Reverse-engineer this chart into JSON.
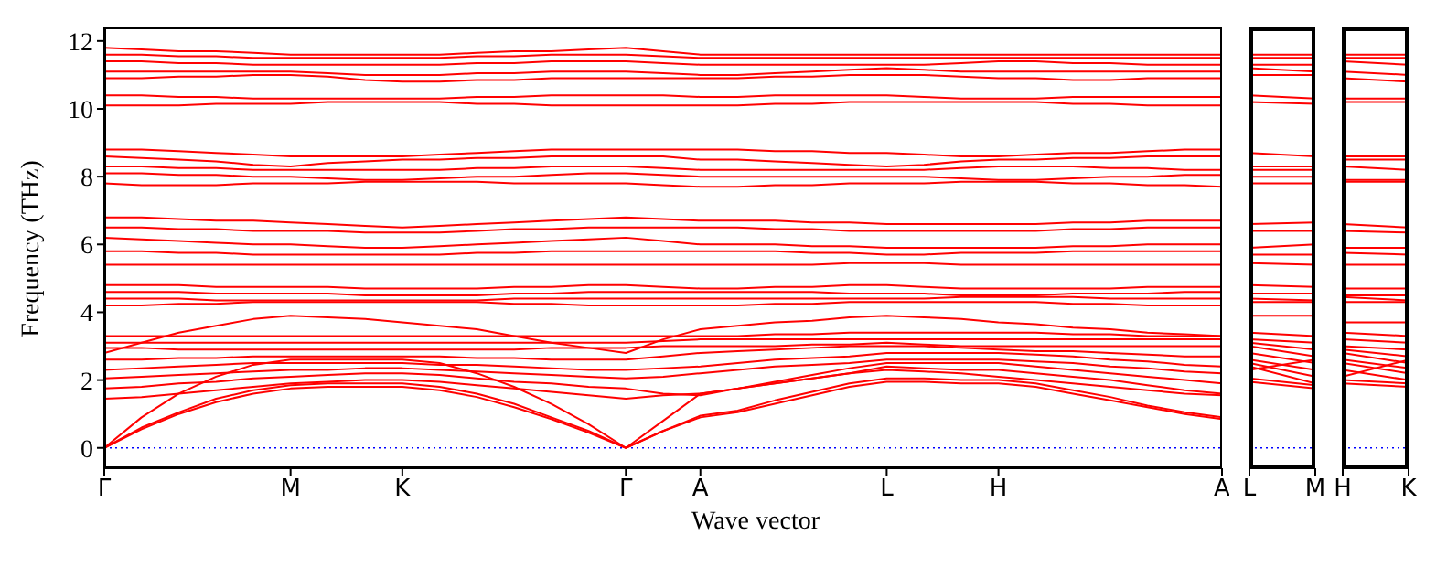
{
  "chart_data": [
    {
      "type": "line",
      "ylabel": "Frequency (THz)",
      "xlabel": "Wave vector",
      "categories": [
        "Γ",
        null,
        null,
        null,
        null,
        "M",
        null,
        null,
        "K",
        null,
        null,
        null,
        null,
        null,
        "Γ",
        null,
        "A",
        null,
        null,
        null,
        null,
        "L",
        null,
        null,
        "H",
        null,
        null,
        null,
        null,
        null,
        "A"
      ],
      "ylim": [
        -0.6,
        12.4
      ],
      "yticks": [
        0,
        2,
        4,
        6,
        8,
        10,
        12
      ],
      "ref_lines": [
        {
          "axis": "y",
          "value": 0,
          "color": "#0000ff",
          "line_style": "dotted"
        }
      ],
      "series": [
        {
          "color": "#ff0000",
          "values": [
            0,
            0.55,
            1.0,
            1.35,
            1.6,
            1.75,
            1.8,
            1.8,
            1.8,
            1.7,
            1.5,
            1.2,
            0.85,
            0.45,
            0,
            0.5,
            0.9,
            1.05,
            1.3,
            1.55,
            1.8,
            1.95,
            1.95,
            1.9,
            1.9,
            1.8,
            1.6,
            1.4,
            1.2,
            1.0,
            0.85
          ]
        },
        {
          "color": "#ff0000",
          "values": [
            0,
            0.6,
            1.05,
            1.45,
            1.7,
            1.85,
            1.9,
            1.9,
            1.9,
            1.8,
            1.6,
            1.3,
            0.9,
            0.5,
            0,
            0.5,
            0.95,
            1.1,
            1.4,
            1.65,
            1.9,
            2.05,
            2.05,
            2.0,
            2.0,
            1.9,
            1.7,
            1.5,
            1.25,
            1.05,
            0.9
          ]
        },
        {
          "color": "#ff0000",
          "values": [
            0,
            0.9,
            1.6,
            2.1,
            2.45,
            2.6,
            2.6,
            2.6,
            2.6,
            2.5,
            2.2,
            1.8,
            1.3,
            0.7,
            0,
            0.8,
            1.6,
            1.75,
            1.9,
            2.05,
            2.2,
            2.3,
            2.25,
            2.2,
            2.1,
            2.0,
            1.9,
            1.8,
            1.7,
            1.6,
            1.55
          ]
        },
        {
          "color": "#ff0000",
          "values": [
            1.45,
            1.5,
            1.6,
            1.7,
            1.8,
            1.9,
            1.95,
            2.0,
            2.0,
            1.95,
            1.85,
            1.75,
            1.65,
            1.55,
            1.45,
            1.55,
            1.6,
            1.75,
            1.9,
            2.05,
            2.2,
            2.4,
            2.35,
            2.3,
            2.3,
            2.2,
            2.1,
            2.0,
            1.85,
            1.7,
            1.6
          ]
        },
        {
          "color": "#ff0000",
          "values": [
            1.75,
            1.8,
            1.9,
            1.95,
            2.05,
            2.1,
            2.15,
            2.2,
            2.2,
            2.15,
            2.05,
            1.95,
            1.9,
            1.8,
            1.75,
            1.6,
            1.55,
            1.75,
            1.95,
            2.15,
            2.35,
            2.5,
            2.5,
            2.5,
            2.5,
            2.4,
            2.3,
            2.2,
            2.1,
            2.0,
            1.9
          ]
        },
        {
          "color": "#ff0000",
          "values": [
            2.05,
            2.1,
            2.15,
            2.2,
            2.25,
            2.3,
            2.3,
            2.35,
            2.35,
            2.3,
            2.25,
            2.2,
            2.15,
            2.1,
            2.05,
            2.1,
            2.2,
            2.3,
            2.4,
            2.45,
            2.5,
            2.6,
            2.6,
            2.6,
            2.6,
            2.55,
            2.5,
            2.4,
            2.35,
            2.25,
            2.2
          ]
        },
        {
          "color": "#ff0000",
          "values": [
            2.3,
            2.35,
            2.4,
            2.45,
            2.5,
            2.5,
            2.5,
            2.5,
            2.5,
            2.45,
            2.45,
            2.4,
            2.35,
            2.3,
            2.3,
            2.35,
            2.4,
            2.5,
            2.6,
            2.65,
            2.7,
            2.8,
            2.8,
            2.8,
            2.8,
            2.75,
            2.7,
            2.6,
            2.55,
            2.45,
            2.4
          ]
        },
        {
          "color": "#ff0000",
          "values": [
            2.6,
            2.6,
            2.65,
            2.65,
            2.7,
            2.7,
            2.7,
            2.7,
            2.7,
            2.7,
            2.65,
            2.65,
            2.6,
            2.6,
            2.6,
            2.7,
            2.8,
            2.85,
            2.9,
            2.95,
            3.0,
            3.0,
            3.0,
            2.95,
            2.9,
            2.85,
            2.85,
            2.8,
            2.75,
            2.7,
            2.7
          ]
        },
        {
          "color": "#ff0000",
          "values": [
            2.95,
            2.95,
            2.9,
            2.9,
            2.9,
            2.9,
            2.9,
            2.9,
            2.9,
            2.9,
            2.9,
            2.9,
            2.95,
            2.95,
            2.95,
            3.0,
            3.0,
            3.0,
            3.0,
            3.05,
            3.05,
            3.1,
            3.05,
            3.0,
            3.0,
            3.0,
            3.0,
            3.0,
            3.0,
            3.0,
            3.0
          ]
        },
        {
          "color": "#ff0000",
          "values": [
            3.1,
            3.1,
            3.1,
            3.1,
            3.1,
            3.1,
            3.1,
            3.1,
            3.1,
            3.1,
            3.1,
            3.1,
            3.1,
            3.1,
            3.1,
            3.15,
            3.2,
            3.2,
            3.2,
            3.2,
            3.2,
            3.2,
            3.2,
            3.2,
            3.2,
            3.2,
            3.2,
            3.2,
            3.2,
            3.2,
            3.2
          ]
        },
        {
          "color": "#ff0000",
          "values": [
            3.3,
            3.3,
            3.3,
            3.3,
            3.3,
            3.3,
            3.3,
            3.3,
            3.3,
            3.3,
            3.3,
            3.3,
            3.3,
            3.3,
            3.3,
            3.3,
            3.3,
            3.3,
            3.35,
            3.35,
            3.4,
            3.4,
            3.4,
            3.4,
            3.4,
            3.4,
            3.35,
            3.35,
            3.3,
            3.3,
            3.3
          ]
        },
        {
          "color": "#ff0000",
          "values": [
            2.8,
            3.1,
            3.4,
            3.6,
            3.8,
            3.9,
            3.85,
            3.8,
            3.7,
            3.6,
            3.5,
            3.3,
            3.1,
            2.95,
            2.8,
            3.2,
            3.5,
            3.6,
            3.7,
            3.75,
            3.85,
            3.9,
            3.85,
            3.8,
            3.7,
            3.65,
            3.55,
            3.5,
            3.4,
            3.35,
            3.3
          ]
        },
        {
          "color": "#ff0000",
          "values": [
            4.2,
            4.2,
            4.25,
            4.25,
            4.3,
            4.3,
            4.3,
            4.3,
            4.3,
            4.3,
            4.3,
            4.25,
            4.25,
            4.2,
            4.2,
            4.2,
            4.2,
            4.2,
            4.25,
            4.25,
            4.3,
            4.3,
            4.3,
            4.3,
            4.3,
            4.3,
            4.25,
            4.25,
            4.2,
            4.2,
            4.2
          ]
        },
        {
          "color": "#ff0000",
          "values": [
            4.4,
            4.4,
            4.4,
            4.35,
            4.35,
            4.35,
            4.35,
            4.35,
            4.35,
            4.35,
            4.35,
            4.4,
            4.4,
            4.4,
            4.4,
            4.4,
            4.4,
            4.4,
            4.4,
            4.4,
            4.4,
            4.4,
            4.4,
            4.45,
            4.45,
            4.45,
            4.45,
            4.4,
            4.4,
            4.4,
            4.4
          ]
        },
        {
          "color": "#ff0000",
          "values": [
            4.6,
            4.6,
            4.6,
            4.55,
            4.55,
            4.55,
            4.55,
            4.5,
            4.5,
            4.5,
            4.5,
            4.55,
            4.55,
            4.6,
            4.6,
            4.6,
            4.6,
            4.6,
            4.6,
            4.6,
            4.55,
            4.55,
            4.55,
            4.5,
            4.5,
            4.5,
            4.55,
            4.55,
            4.55,
            4.6,
            4.6
          ]
        },
        {
          "color": "#ff0000",
          "values": [
            4.8,
            4.8,
            4.8,
            4.75,
            4.75,
            4.75,
            4.75,
            4.7,
            4.7,
            4.7,
            4.7,
            4.75,
            4.75,
            4.8,
            4.8,
            4.75,
            4.7,
            4.7,
            4.75,
            4.75,
            4.8,
            4.8,
            4.75,
            4.7,
            4.7,
            4.7,
            4.7,
            4.7,
            4.75,
            4.75,
            4.75
          ]
        },
        {
          "color": "#ff0000",
          "values": [
            5.4,
            5.4,
            5.4,
            5.4,
            5.4,
            5.4,
            5.4,
            5.4,
            5.4,
            5.4,
            5.4,
            5.4,
            5.4,
            5.4,
            5.4,
            5.4,
            5.4,
            5.4,
            5.4,
            5.4,
            5.45,
            5.45,
            5.45,
            5.4,
            5.4,
            5.4,
            5.4,
            5.4,
            5.4,
            5.4,
            5.4
          ]
        },
        {
          "color": "#ff0000",
          "values": [
            5.8,
            5.8,
            5.75,
            5.75,
            5.7,
            5.7,
            5.7,
            5.7,
            5.7,
            5.7,
            5.75,
            5.75,
            5.8,
            5.8,
            5.8,
            5.8,
            5.8,
            5.8,
            5.8,
            5.75,
            5.75,
            5.7,
            5.7,
            5.75,
            5.75,
            5.75,
            5.8,
            5.8,
            5.8,
            5.8,
            5.8
          ]
        },
        {
          "color": "#ff0000",
          "values": [
            6.2,
            6.15,
            6.1,
            6.05,
            6.0,
            6.0,
            5.95,
            5.9,
            5.9,
            5.95,
            6.0,
            6.05,
            6.1,
            6.15,
            6.2,
            6.1,
            6.0,
            6.0,
            6.0,
            5.95,
            5.95,
            5.9,
            5.9,
            5.9,
            5.9,
            5.9,
            5.95,
            5.95,
            6.0,
            6.0,
            6.0
          ]
        },
        {
          "color": "#ff0000",
          "values": [
            6.5,
            6.5,
            6.45,
            6.45,
            6.4,
            6.4,
            6.4,
            6.35,
            6.35,
            6.35,
            6.4,
            6.45,
            6.45,
            6.5,
            6.5,
            6.5,
            6.5,
            6.5,
            6.45,
            6.45,
            6.4,
            6.4,
            6.4,
            6.4,
            6.4,
            6.4,
            6.45,
            6.45,
            6.5,
            6.5,
            6.5
          ]
        },
        {
          "color": "#ff0000",
          "values": [
            6.8,
            6.8,
            6.75,
            6.7,
            6.7,
            6.65,
            6.6,
            6.55,
            6.5,
            6.55,
            6.6,
            6.65,
            6.7,
            6.75,
            6.8,
            6.75,
            6.7,
            6.7,
            6.7,
            6.65,
            6.65,
            6.6,
            6.6,
            6.6,
            6.6,
            6.6,
            6.65,
            6.65,
            6.7,
            6.7,
            6.7
          ]
        },
        {
          "color": "#ff0000",
          "values": [
            7.8,
            7.75,
            7.75,
            7.75,
            7.8,
            7.8,
            7.8,
            7.85,
            7.85,
            7.85,
            7.85,
            7.8,
            7.8,
            7.8,
            7.8,
            7.75,
            7.7,
            7.7,
            7.75,
            7.75,
            7.8,
            7.8,
            7.8,
            7.85,
            7.85,
            7.85,
            7.8,
            7.8,
            7.75,
            7.75,
            7.7
          ]
        },
        {
          "color": "#ff0000",
          "values": [
            8.1,
            8.1,
            8.05,
            8.05,
            8.0,
            8.0,
            7.95,
            7.9,
            7.9,
            7.95,
            8.0,
            8.0,
            8.05,
            8.1,
            8.1,
            8.05,
            8.0,
            8.0,
            8.0,
            8.0,
            8.0,
            8.0,
            8.0,
            7.95,
            7.9,
            7.9,
            7.95,
            8.0,
            8.0,
            8.05,
            8.05
          ]
        },
        {
          "color": "#ff0000",
          "values": [
            8.3,
            8.3,
            8.25,
            8.25,
            8.2,
            8.2,
            8.2,
            8.2,
            8.2,
            8.2,
            8.25,
            8.25,
            8.3,
            8.3,
            8.3,
            8.25,
            8.2,
            8.2,
            8.2,
            8.2,
            8.2,
            8.2,
            8.2,
            8.25,
            8.3,
            8.3,
            8.3,
            8.25,
            8.25,
            8.2,
            8.2
          ]
        },
        {
          "color": "#ff0000",
          "values": [
            8.6,
            8.55,
            8.5,
            8.45,
            8.35,
            8.3,
            8.4,
            8.45,
            8.5,
            8.5,
            8.55,
            8.55,
            8.6,
            8.6,
            8.6,
            8.6,
            8.5,
            8.5,
            8.45,
            8.4,
            8.35,
            8.3,
            8.35,
            8.45,
            8.5,
            8.5,
            8.55,
            8.55,
            8.6,
            8.6,
            8.6
          ]
        },
        {
          "color": "#ff0000",
          "values": [
            8.8,
            8.8,
            8.75,
            8.7,
            8.65,
            8.6,
            8.6,
            8.6,
            8.6,
            8.65,
            8.7,
            8.75,
            8.8,
            8.8,
            8.8,
            8.8,
            8.8,
            8.8,
            8.75,
            8.75,
            8.7,
            8.7,
            8.65,
            8.6,
            8.6,
            8.65,
            8.7,
            8.7,
            8.75,
            8.8,
            8.8
          ]
        },
        {
          "color": "#ff0000",
          "values": [
            10.1,
            10.1,
            10.1,
            10.15,
            10.15,
            10.15,
            10.2,
            10.2,
            10.2,
            10.2,
            10.15,
            10.15,
            10.1,
            10.1,
            10.1,
            10.1,
            10.1,
            10.1,
            10.15,
            10.15,
            10.2,
            10.2,
            10.2,
            10.2,
            10.2,
            10.2,
            10.15,
            10.15,
            10.1,
            10.1,
            10.1
          ]
        },
        {
          "color": "#ff0000",
          "values": [
            10.4,
            10.4,
            10.35,
            10.35,
            10.3,
            10.3,
            10.3,
            10.3,
            10.3,
            10.3,
            10.35,
            10.35,
            10.4,
            10.4,
            10.4,
            10.4,
            10.35,
            10.35,
            10.4,
            10.4,
            10.4,
            10.4,
            10.35,
            10.3,
            10.3,
            10.3,
            10.35,
            10.35,
            10.35,
            10.35,
            10.35
          ]
        },
        {
          "color": "#ff0000",
          "values": [
            10.9,
            10.9,
            10.95,
            10.95,
            11.0,
            11.0,
            10.95,
            10.85,
            10.8,
            10.8,
            10.85,
            10.85,
            10.9,
            10.9,
            10.9,
            10.9,
            10.9,
            10.9,
            10.95,
            10.95,
            11.0,
            11.0,
            11.0,
            10.95,
            10.9,
            10.9,
            10.85,
            10.85,
            10.9,
            10.9,
            10.9
          ]
        },
        {
          "color": "#ff0000",
          "values": [
            11.1,
            11.1,
            11.1,
            11.1,
            11.1,
            11.1,
            11.05,
            11.0,
            11.0,
            11.0,
            11.05,
            11.05,
            11.1,
            11.1,
            11.1,
            11.05,
            11.0,
            11.0,
            11.05,
            11.1,
            11.15,
            11.2,
            11.15,
            11.1,
            11.1,
            11.1,
            11.1,
            11.1,
            11.1,
            11.1,
            11.1
          ]
        },
        {
          "color": "#ff0000",
          "values": [
            11.4,
            11.4,
            11.35,
            11.35,
            11.3,
            11.3,
            11.3,
            11.3,
            11.3,
            11.3,
            11.35,
            11.35,
            11.4,
            11.4,
            11.4,
            11.35,
            11.3,
            11.3,
            11.3,
            11.3,
            11.3,
            11.3,
            11.3,
            11.35,
            11.4,
            11.4,
            11.35,
            11.35,
            11.3,
            11.3,
            11.3
          ]
        },
        {
          "color": "#ff0000",
          "values": [
            11.6,
            11.6,
            11.55,
            11.55,
            11.5,
            11.5,
            11.5,
            11.5,
            11.5,
            11.5,
            11.55,
            11.55,
            11.6,
            11.6,
            11.6,
            11.55,
            11.5,
            11.5,
            11.5,
            11.5,
            11.5,
            11.5,
            11.5,
            11.5,
            11.5,
            11.5,
            11.5,
            11.5,
            11.5,
            11.5,
            11.5
          ]
        },
        {
          "color": "#ff0000",
          "values": [
            11.8,
            11.75,
            11.7,
            11.7,
            11.65,
            11.6,
            11.6,
            11.6,
            11.6,
            11.6,
            11.65,
            11.7,
            11.7,
            11.75,
            11.8,
            11.7,
            11.6,
            11.6,
            11.6,
            11.6,
            11.6,
            11.6,
            11.6,
            11.6,
            11.6,
            11.6,
            11.6,
            11.6,
            11.6,
            11.6,
            11.6
          ]
        }
      ]
    },
    {
      "type": "line",
      "categories": [
        "L",
        "M"
      ],
      "ylim": [
        -0.6,
        12.4
      ],
      "yticks": [
        0,
        2,
        4,
        6,
        8,
        10,
        12
      ],
      "tick_labels": "x",
      "ref_lines": [
        {
          "axis": "y",
          "value": 0,
          "color": "#0000ff",
          "line_style": "dotted"
        }
      ],
      "series": [
        {
          "color": "#ff0000",
          "values": [
            1.95,
            1.75
          ]
        },
        {
          "color": "#ff0000",
          "values": [
            2.05,
            1.85
          ]
        },
        {
          "color": "#ff0000",
          "values": [
            2.3,
            2.6
          ]
        },
        {
          "color": "#ff0000",
          "values": [
            2.4,
            1.9
          ]
        },
        {
          "color": "#ff0000",
          "values": [
            2.5,
            2.1
          ]
        },
        {
          "color": "#ff0000",
          "values": [
            2.6,
            2.3
          ]
        },
        {
          "color": "#ff0000",
          "values": [
            2.8,
            2.5
          ]
        },
        {
          "color": "#ff0000",
          "values": [
            3.0,
            2.7
          ]
        },
        {
          "color": "#ff0000",
          "values": [
            3.1,
            2.9
          ]
        },
        {
          "color": "#ff0000",
          "values": [
            3.2,
            3.1
          ]
        },
        {
          "color": "#ff0000",
          "values": [
            3.4,
            3.3
          ]
        },
        {
          "color": "#ff0000",
          "values": [
            3.9,
            3.9
          ]
        },
        {
          "color": "#ff0000",
          "values": [
            4.3,
            4.3
          ]
        },
        {
          "color": "#ff0000",
          "values": [
            4.4,
            4.35
          ]
        },
        {
          "color": "#ff0000",
          "values": [
            4.55,
            4.55
          ]
        },
        {
          "color": "#ff0000",
          "values": [
            4.8,
            4.75
          ]
        },
        {
          "color": "#ff0000",
          "values": [
            5.45,
            5.4
          ]
        },
        {
          "color": "#ff0000",
          "values": [
            5.7,
            5.7
          ]
        },
        {
          "color": "#ff0000",
          "values": [
            5.9,
            6.0
          ]
        },
        {
          "color": "#ff0000",
          "values": [
            6.4,
            6.4
          ]
        },
        {
          "color": "#ff0000",
          "values": [
            6.6,
            6.65
          ]
        },
        {
          "color": "#ff0000",
          "values": [
            7.8,
            7.8
          ]
        },
        {
          "color": "#ff0000",
          "values": [
            8.0,
            8.0
          ]
        },
        {
          "color": "#ff0000",
          "values": [
            8.2,
            8.2
          ]
        },
        {
          "color": "#ff0000",
          "values": [
            8.3,
            8.3
          ]
        },
        {
          "color": "#ff0000",
          "values": [
            8.7,
            8.6
          ]
        },
        {
          "color": "#ff0000",
          "values": [
            10.2,
            10.15
          ]
        },
        {
          "color": "#ff0000",
          "values": [
            10.4,
            10.3
          ]
        },
        {
          "color": "#ff0000",
          "values": [
            11.0,
            11.0
          ]
        },
        {
          "color": "#ff0000",
          "values": [
            11.2,
            11.1
          ]
        },
        {
          "color": "#ff0000",
          "values": [
            11.3,
            11.3
          ]
        },
        {
          "color": "#ff0000",
          "values": [
            11.5,
            11.5
          ]
        },
        {
          "color": "#ff0000",
          "values": [
            11.6,
            11.6
          ]
        }
      ]
    },
    {
      "type": "line",
      "categories": [
        "H",
        "K"
      ],
      "ylim": [
        -0.6,
        12.4
      ],
      "yticks": [
        0,
        2,
        4,
        6,
        8,
        10,
        12
      ],
      "tick_labels": "x",
      "ref_lines": [
        {
          "axis": "y",
          "value": 0,
          "color": "#0000ff",
          "line_style": "dotted"
        }
      ],
      "series": [
        {
          "color": "#ff0000",
          "values": [
            1.9,
            1.8
          ]
        },
        {
          "color": "#ff0000",
          "values": [
            2.0,
            1.9
          ]
        },
        {
          "color": "#ff0000",
          "values": [
            2.1,
            2.6
          ]
        },
        {
          "color": "#ff0000",
          "values": [
            2.3,
            2.0
          ]
        },
        {
          "color": "#ff0000",
          "values": [
            2.5,
            2.2
          ]
        },
        {
          "color": "#ff0000",
          "values": [
            2.6,
            2.35
          ]
        },
        {
          "color": "#ff0000",
          "values": [
            2.8,
            2.5
          ]
        },
        {
          "color": "#ff0000",
          "values": [
            2.9,
            2.7
          ]
        },
        {
          "color": "#ff0000",
          "values": [
            3.0,
            2.9
          ]
        },
        {
          "color": "#ff0000",
          "values": [
            3.2,
            3.1
          ]
        },
        {
          "color": "#ff0000",
          "values": [
            3.4,
            3.3
          ]
        },
        {
          "color": "#ff0000",
          "values": [
            3.7,
            3.7
          ]
        },
        {
          "color": "#ff0000",
          "values": [
            4.3,
            4.3
          ]
        },
        {
          "color": "#ff0000",
          "values": [
            4.45,
            4.35
          ]
        },
        {
          "color": "#ff0000",
          "values": [
            4.5,
            4.5
          ]
        },
        {
          "color": "#ff0000",
          "values": [
            4.7,
            4.7
          ]
        },
        {
          "color": "#ff0000",
          "values": [
            5.4,
            5.4
          ]
        },
        {
          "color": "#ff0000",
          "values": [
            5.75,
            5.7
          ]
        },
        {
          "color": "#ff0000",
          "values": [
            5.9,
            5.9
          ]
        },
        {
          "color": "#ff0000",
          "values": [
            6.4,
            6.35
          ]
        },
        {
          "color": "#ff0000",
          "values": [
            6.6,
            6.5
          ]
        },
        {
          "color": "#ff0000",
          "values": [
            7.85,
            7.85
          ]
        },
        {
          "color": "#ff0000",
          "values": [
            7.9,
            7.9
          ]
        },
        {
          "color": "#ff0000",
          "values": [
            8.3,
            8.2
          ]
        },
        {
          "color": "#ff0000",
          "values": [
            8.5,
            8.5
          ]
        },
        {
          "color": "#ff0000",
          "values": [
            8.6,
            8.6
          ]
        },
        {
          "color": "#ff0000",
          "values": [
            10.2,
            10.2
          ]
        },
        {
          "color": "#ff0000",
          "values": [
            10.3,
            10.3
          ]
        },
        {
          "color": "#ff0000",
          "values": [
            10.9,
            10.8
          ]
        },
        {
          "color": "#ff0000",
          "values": [
            11.1,
            11.0
          ]
        },
        {
          "color": "#ff0000",
          "values": [
            11.4,
            11.3
          ]
        },
        {
          "color": "#ff0000",
          "values": [
            11.5,
            11.5
          ]
        },
        {
          "color": "#ff0000",
          "values": [
            11.6,
            11.6
          ]
        }
      ]
    }
  ]
}
